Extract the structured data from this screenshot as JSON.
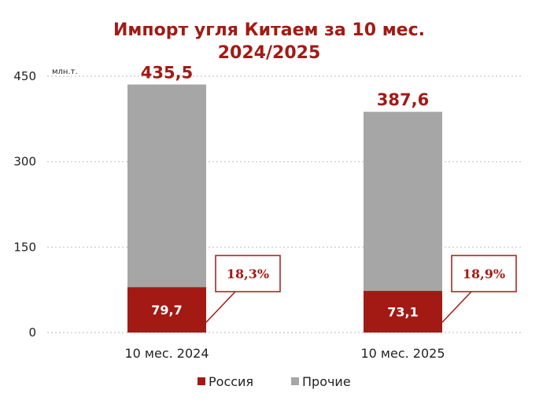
{
  "chart_data": {
    "type": "bar",
    "stacked": true,
    "title_line1": "Импорт угля Китаем за 10 мес.",
    "title_line2": "2024/2025",
    "unit": "млн.т.",
    "categories": [
      "10 мес. 2024",
      "10 мес. 2025"
    ],
    "series": [
      {
        "name": "Россия",
        "values": [
          79.7,
          73.1
        ],
        "labels": [
          "79,7",
          "73,1"
        ],
        "color": "#a31a15"
      },
      {
        "name": "Прочие",
        "values": [
          355.8,
          314.5
        ],
        "color": "#a6a6a6"
      }
    ],
    "totals": [
      "435,5",
      "387,6"
    ],
    "total_values": [
      435.5,
      387.6
    ],
    "shares": [
      "18,3%",
      "18,9%"
    ],
    "y_ticks": [
      "0",
      "150",
      "300",
      "450"
    ],
    "ylim": [
      0,
      450
    ],
    "grid": true,
    "legend_position": "bottom"
  }
}
